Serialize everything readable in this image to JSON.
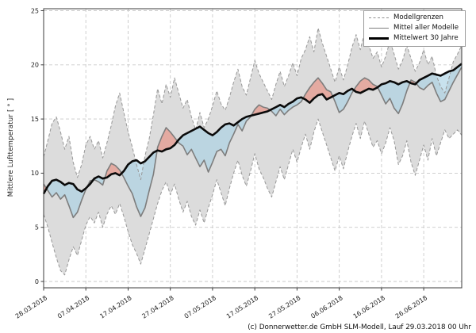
{
  "footer": "(c) Donnerwetter.de GmbH SLM-Modell, Lauf 29.03.2018 00 Uhr",
  "ylabel": "Mittlere Lufttemperatur [ ° ]",
  "legend": [
    {
      "label": "Modellgrenzen",
      "style": "dashed"
    },
    {
      "label": "Mittel aller Modelle",
      "style": "gray"
    },
    {
      "label": "Mittelwert 30 Jahre",
      "style": "black"
    }
  ],
  "colors": {
    "band_fill": "#dcdcdc",
    "band_edge": "#979797",
    "grid": "#c9c9c9",
    "frame": "#3c3c3c",
    "mean_line": "#7d7d7d",
    "climate_line": "#0a0a0a",
    "warm_fill": "#e88b7d",
    "cold_fill": "#a6d1e4",
    "fill_opacity": 0.62,
    "tick_text": "#1a1a1a"
  },
  "chart_data": {
    "type": "line",
    "title": "",
    "xlabel": "",
    "ylabel": "Mittlere Lufttemperatur [ ° ]",
    "ylim": [
      0,
      25
    ],
    "yticks": [
      0,
      5,
      10,
      15,
      20,
      25
    ],
    "grid": true,
    "legend_position": "upper right",
    "x_start_date": "28.03.2018",
    "x_days": 100,
    "x_tick_days": [
      0,
      10,
      20,
      30,
      40,
      50,
      60,
      70,
      80,
      90
    ],
    "x_tick_labels": [
      "28.03.2018",
      "07.04.2018",
      "17.04.2018",
      "27.04.2018",
      "07.05.2018",
      "17.05.2018",
      "27.05.2018",
      "06.06.2018",
      "16.06.2018",
      "26.06.2018"
    ],
    "series": [
      {
        "name": "Modellgrenzen (Maximum)",
        "role": "band_max",
        "values": [
          11.5,
          13.0,
          14.6,
          15.2,
          13.8,
          12.2,
          13.4,
          11.0,
          9.6,
          10.8,
          12.6,
          13.4,
          12.2,
          13.0,
          11.4,
          12.8,
          14.4,
          16.2,
          17.4,
          15.6,
          13.8,
          12.4,
          10.8,
          9.4,
          11.6,
          13.2,
          15.4,
          17.8,
          16.4,
          18.2,
          17.0,
          18.8,
          17.4,
          16.0,
          16.8,
          15.2,
          14.0,
          15.6,
          14.2,
          15.0,
          16.2,
          17.6,
          16.4,
          15.8,
          17.0,
          18.4,
          19.6,
          18.0,
          17.2,
          18.8,
          20.4,
          19.2,
          18.4,
          17.6,
          16.8,
          18.2,
          19.4,
          18.0,
          19.0,
          20.2,
          19.0,
          20.6,
          21.4,
          22.6,
          21.2,
          23.4,
          22.0,
          20.8,
          19.6,
          18.4,
          19.8,
          18.6,
          20.0,
          21.6,
          22.8,
          21.4,
          23.0,
          21.8,
          20.6,
          21.2,
          19.8,
          20.8,
          22.2,
          21.0,
          19.6,
          20.4,
          21.8,
          20.6,
          19.4,
          20.2,
          21.4,
          20.0,
          20.8,
          19.0,
          18.0,
          17.4,
          18.8,
          20.3,
          21.0,
          21.8
        ]
      },
      {
        "name": "Modellgrenzen (Minimum)",
        "role": "band_min",
        "values": [
          6.2,
          5.0,
          3.6,
          2.2,
          1.0,
          0.6,
          2.0,
          3.2,
          2.4,
          3.8,
          5.2,
          6.0,
          5.4,
          6.4,
          5.0,
          6.2,
          7.0,
          6.2,
          7.2,
          6.0,
          4.6,
          3.4,
          2.6,
          1.6,
          3.0,
          4.4,
          5.8,
          7.2,
          8.4,
          9.2,
          8.0,
          9.0,
          7.6,
          6.4,
          7.4,
          6.0,
          5.2,
          6.6,
          5.4,
          6.8,
          8.0,
          9.4,
          8.2,
          7.0,
          8.6,
          10.0,
          11.2,
          9.8,
          8.8,
          10.2,
          11.8,
          10.4,
          9.6,
          8.6,
          7.8,
          9.2,
          10.6,
          9.4,
          10.8,
          12.2,
          11.0,
          12.4,
          13.6,
          12.2,
          13.8,
          15.0,
          13.8,
          12.6,
          11.4,
          10.2,
          11.6,
          10.4,
          12.0,
          13.4,
          14.6,
          13.2,
          14.8,
          13.6,
          12.4,
          13.0,
          11.8,
          12.8,
          14.2,
          13.0,
          10.8,
          11.6,
          13.0,
          11.0,
          9.8,
          11.2,
          12.6,
          11.2,
          13.2,
          11.6,
          12.8,
          14.0,
          13.2,
          13.6,
          14.0,
          13.5
        ]
      },
      {
        "name": "Mittel aller Modelle",
        "role": "model_mean",
        "values": [
          9.0,
          8.4,
          7.8,
          8.2,
          7.6,
          8.0,
          7.0,
          5.9,
          6.4,
          7.5,
          8.5,
          9.3,
          9.4,
          9.2,
          8.9,
          10.2,
          10.9,
          10.7,
          10.3,
          9.6,
          8.8,
          8.1,
          6.9,
          6.0,
          6.8,
          8.4,
          9.9,
          12.4,
          13.4,
          14.2,
          13.8,
          13.3,
          12.8,
          12.5,
          11.7,
          12.2,
          11.4,
          10.6,
          11.2,
          10.1,
          11.0,
          12.0,
          12.2,
          11.6,
          12.8,
          13.6,
          14.5,
          13.9,
          14.8,
          15.2,
          15.9,
          16.3,
          16.1,
          16.0,
          15.7,
          15.3,
          15.9,
          15.4,
          15.8,
          16.1,
          16.3,
          16.6,
          17.3,
          17.9,
          18.4,
          18.8,
          18.3,
          17.7,
          17.5,
          16.6,
          15.6,
          15.9,
          16.6,
          17.4,
          18.0,
          18.5,
          18.8,
          18.6,
          18.2,
          18.0,
          17.2,
          16.4,
          16.9,
          16.0,
          15.5,
          16.4,
          17.6,
          18.6,
          18.4,
          17.9,
          17.7,
          18.1,
          18.4,
          17.4,
          16.6,
          16.8,
          17.6,
          18.4,
          19.1,
          19.8
        ]
      },
      {
        "name": "Mittelwert 30 Jahre",
        "role": "climate_mean",
        "values": [
          8.1,
          8.8,
          9.3,
          9.4,
          9.2,
          8.9,
          9.1,
          9.0,
          8.5,
          8.3,
          8.6,
          9.0,
          9.5,
          9.7,
          9.5,
          9.6,
          9.9,
          10.0,
          9.8,
          10.2,
          10.8,
          11.1,
          11.2,
          10.9,
          11.1,
          11.5,
          11.9,
          12.1,
          12.0,
          12.2,
          12.3,
          12.6,
          13.1,
          13.5,
          13.7,
          13.9,
          14.1,
          14.3,
          14.0,
          13.7,
          13.5,
          13.8,
          14.2,
          14.5,
          14.6,
          14.4,
          14.7,
          15.0,
          15.2,
          15.3,
          15.4,
          15.5,
          15.6,
          15.7,
          15.9,
          16.1,
          16.3,
          16.1,
          16.4,
          16.6,
          16.9,
          17.0,
          16.8,
          16.5,
          16.9,
          17.2,
          17.3,
          16.8,
          17.0,
          17.2,
          17.4,
          17.3,
          17.6,
          17.8,
          17.5,
          17.4,
          17.6,
          17.8,
          17.7,
          17.9,
          18.2,
          18.3,
          18.5,
          18.4,
          18.2,
          18.4,
          18.5,
          18.3,
          18.2,
          18.6,
          18.8,
          19.0,
          19.2,
          19.1,
          19.0,
          19.2,
          19.4,
          19.5,
          19.8,
          20.1
        ]
      }
    ],
    "fills": [
      {
        "name": "warm-anomaly",
        "rule": "model_mean > climate_mean",
        "color": "#e88b7d"
      },
      {
        "name": "cold-anomaly",
        "rule": "model_mean < climate_mean",
        "color": "#a6d1e4"
      }
    ]
  }
}
